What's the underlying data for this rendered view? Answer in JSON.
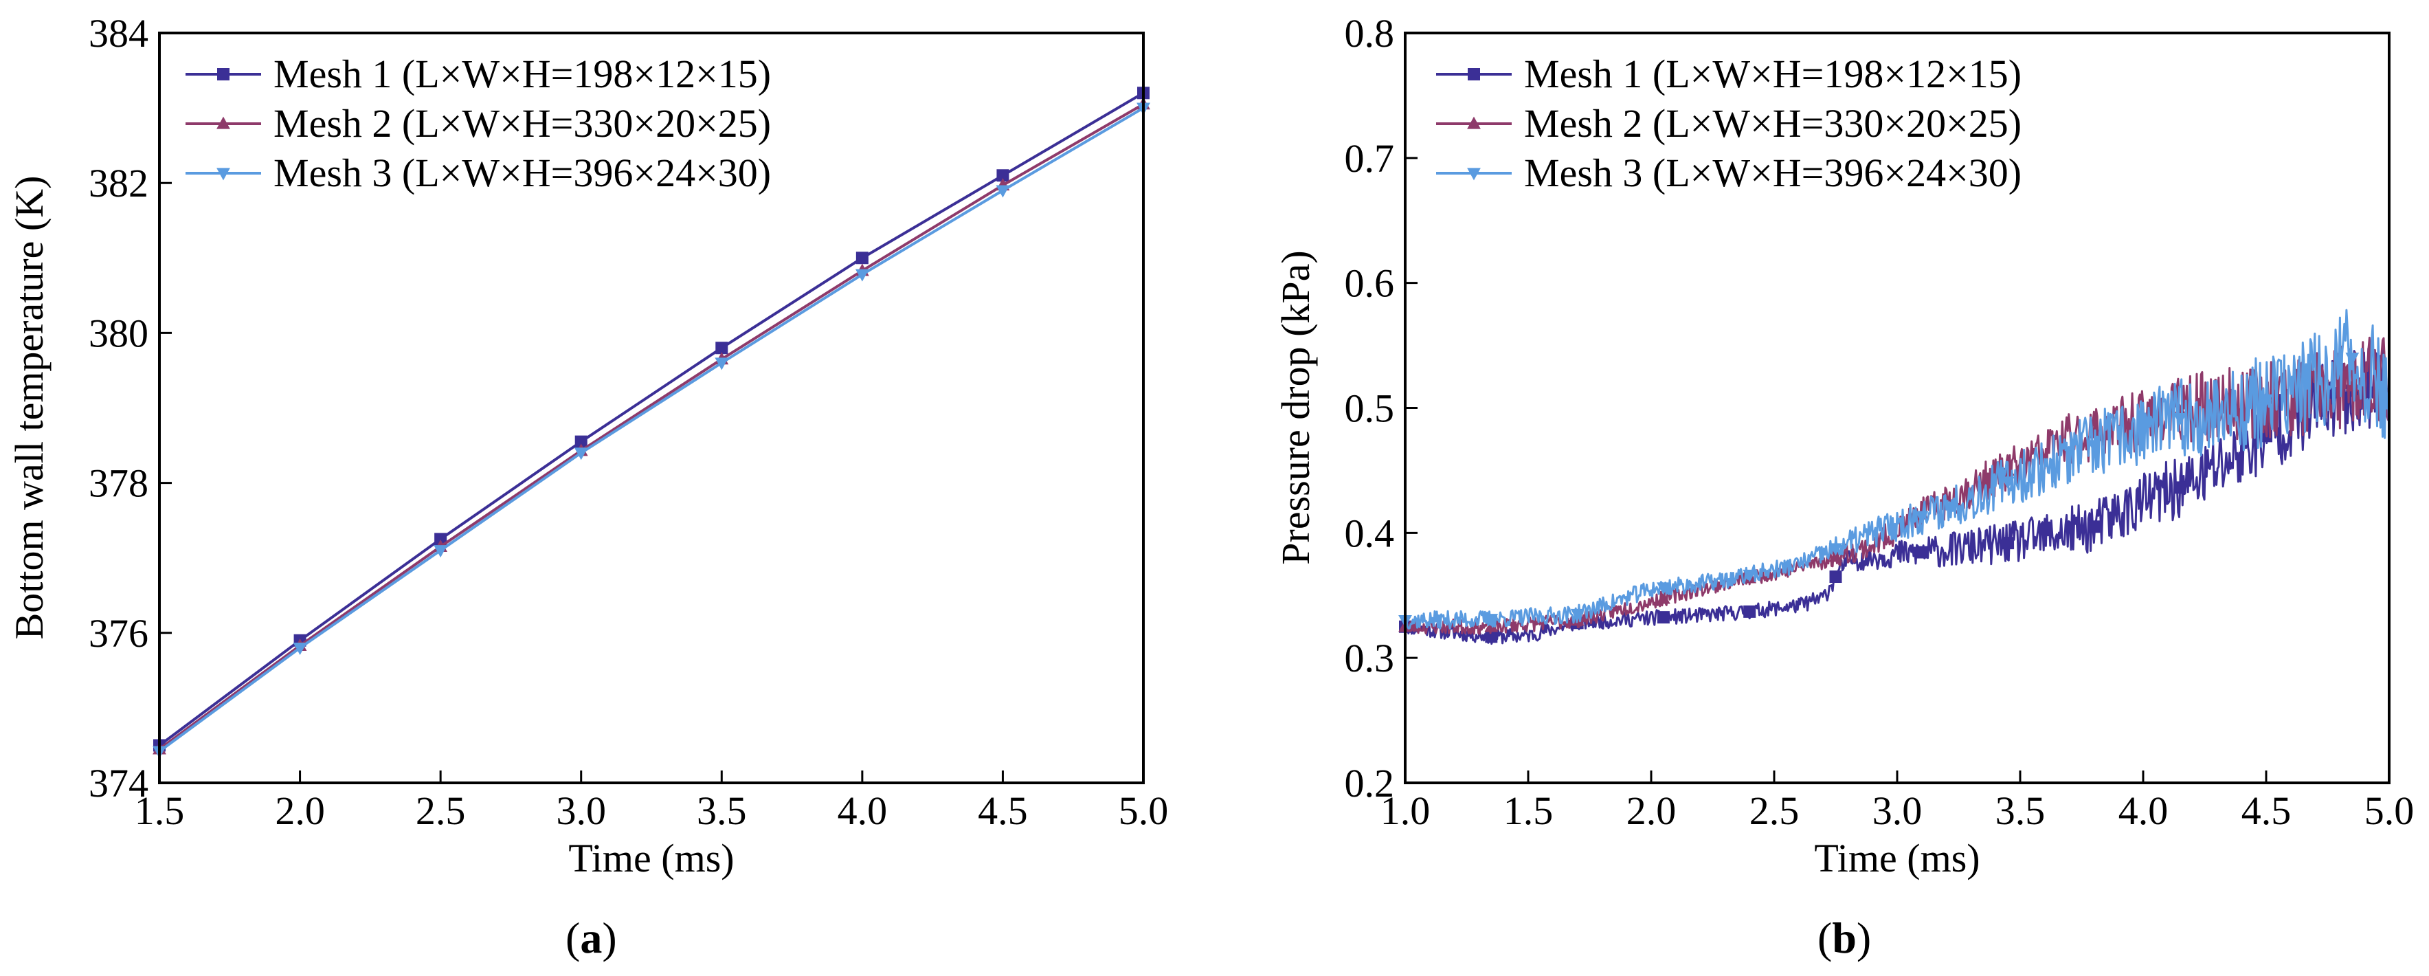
{
  "figure": {
    "panel_labels": [
      {
        "open": "(",
        "letter": "a",
        "close": ")"
      },
      {
        "open": "(",
        "letter": "b",
        "close": ")"
      }
    ]
  },
  "chart_data": [
    {
      "type": "line",
      "xlabel": "Time (ms)",
      "ylabel": "Bottom wall temperature (K)",
      "xlim": [
        1.5,
        5.0
      ],
      "ylim": [
        374,
        384
      ],
      "xticks": [
        1.5,
        2.0,
        2.5,
        3.0,
        3.5,
        4.0,
        4.5,
        5.0
      ],
      "xtick_labels": [
        "1.5",
        "2.0",
        "2.5",
        "3.0",
        "3.5",
        "4.0",
        "4.5",
        "5.0"
      ],
      "yticks": [
        374,
        376,
        378,
        380,
        382,
        384
      ],
      "ytick_labels": [
        "374",
        "376",
        "378",
        "380",
        "382",
        "384"
      ],
      "legend": "top-left",
      "series": [
        {
          "name": "Mesh 1 (L×W×H=198×12×15)",
          "color": "#3b2f96",
          "marker": "square",
          "x": [
            1.5,
            2.0,
            2.5,
            3.0,
            3.5,
            4.0,
            4.5,
            5.0
          ],
          "y": [
            374.5,
            375.9,
            377.25,
            378.55,
            379.8,
            381.0,
            382.1,
            383.2
          ]
        },
        {
          "name": "Mesh 2 (L×W×H=330×20×25)",
          "color": "#8e3a6a",
          "marker": "triangle-up",
          "x": [
            1.5,
            2.0,
            2.5,
            3.0,
            3.5,
            4.0,
            4.5,
            5.0
          ],
          "y": [
            374.45,
            375.83,
            377.15,
            378.43,
            379.65,
            380.83,
            381.97,
            383.05
          ]
        },
        {
          "name": "Mesh 3 (L×W×H=396×24×30)",
          "color": "#5a9be0",
          "marker": "triangle-down",
          "x": [
            1.5,
            2.0,
            2.5,
            3.0,
            3.5,
            4.0,
            4.5,
            5.0
          ],
          "y": [
            374.42,
            375.8,
            377.1,
            378.4,
            379.6,
            380.78,
            381.9,
            383.0
          ]
        }
      ]
    },
    {
      "type": "line",
      "xlabel": "Time (ms)",
      "ylabel": "Pressure drop (kPa)",
      "xlim": [
        1.0,
        5.0
      ],
      "ylim": [
        0.2,
        0.8
      ],
      "xticks": [
        1.0,
        1.5,
        2.0,
        2.5,
        3.0,
        3.5,
        4.0,
        4.5,
        5.0
      ],
      "xtick_labels": [
        "1.0",
        "1.5",
        "2.0",
        "2.5",
        "3.0",
        "3.5",
        "4.0",
        "4.5",
        "5.0"
      ],
      "yticks": [
        0.2,
        0.3,
        0.4,
        0.5,
        0.6,
        0.7,
        0.8
      ],
      "ytick_labels": [
        "0.2",
        "0.3",
        "0.4",
        "0.5",
        "0.6",
        "0.7",
        "0.8"
      ],
      "legend": "top-left",
      "series": [
        {
          "name": "Mesh 1 (L×W×H=198×12×15)",
          "color": "#3b2f96",
          "marker": "square",
          "noise": 0.006,
          "noise_growth": 0.03,
          "seed": 11,
          "x": [
            1.0,
            1.2,
            1.35,
            1.5,
            1.7,
            2.0,
            2.2,
            2.4,
            2.6,
            2.7,
            2.75,
            2.8,
            3.0,
            3.2,
            3.5,
            3.8,
            4.0,
            4.2,
            4.4,
            4.6,
            4.8,
            5.0
          ],
          "y": [
            0.325,
            0.32,
            0.317,
            0.318,
            0.328,
            0.332,
            0.334,
            0.337,
            0.342,
            0.348,
            0.365,
            0.378,
            0.383,
            0.386,
            0.393,
            0.405,
            0.425,
            0.44,
            0.465,
            0.49,
            0.51,
            0.525
          ],
          "marker_x": [
            1.0,
            1.35,
            1.7,
            2.05,
            2.4,
            2.75,
            3.1,
            3.45,
            3.8,
            4.15,
            4.5,
            4.85
          ]
        },
        {
          "name": "Mesh 2 (L×W×H=330×20×25)",
          "color": "#8e3a6a",
          "marker": "triangle-up",
          "noise": 0.006,
          "noise_growth": 0.032,
          "seed": 23,
          "x": [
            1.0,
            1.35,
            1.7,
            2.0,
            2.3,
            2.6,
            2.9,
            3.1,
            3.4,
            3.7,
            4.0,
            4.2,
            4.4,
            4.6,
            4.8,
            5.0
          ],
          "y": [
            0.325,
            0.325,
            0.33,
            0.345,
            0.36,
            0.372,
            0.39,
            0.415,
            0.445,
            0.475,
            0.49,
            0.5,
            0.505,
            0.51,
            0.515,
            0.525
          ],
          "marker_x": [
            1.0,
            1.35,
            1.7,
            2.05,
            2.4,
            2.75,
            3.1,
            3.45,
            3.8,
            4.15,
            4.5,
            4.85
          ]
        },
        {
          "name": "Mesh 3 (L×W×H=396×24×30)",
          "color": "#5a9be0",
          "marker": "triangle-down",
          "noise": 0.007,
          "noise_growth": 0.038,
          "seed": 37,
          "x": [
            1.0,
            1.35,
            1.7,
            2.0,
            2.3,
            2.6,
            2.9,
            3.2,
            3.5,
            3.8,
            4.1,
            4.4,
            4.7,
            4.85,
            5.0
          ],
          "y": [
            0.33,
            0.331,
            0.335,
            0.355,
            0.362,
            0.375,
            0.4,
            0.42,
            0.445,
            0.47,
            0.49,
            0.5,
            0.52,
            0.54,
            0.51
          ],
          "marker_x": [
            1.0,
            1.35,
            1.7,
            2.05,
            2.4,
            2.75,
            3.1,
            3.45,
            3.8,
            4.15,
            4.5,
            4.85
          ]
        }
      ]
    }
  ]
}
